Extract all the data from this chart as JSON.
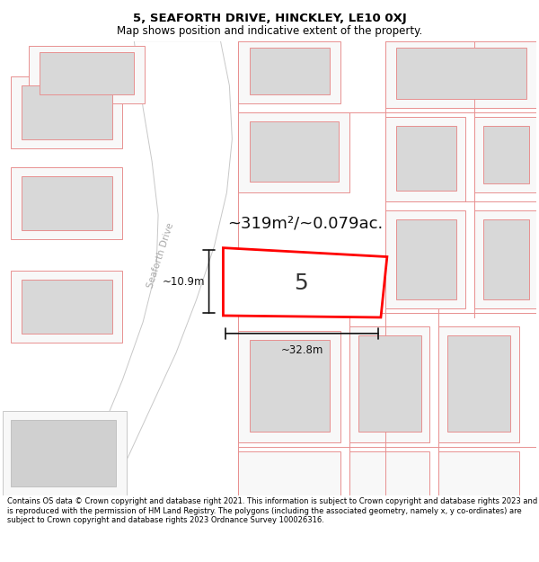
{
  "title": "5, SEAFORTH DRIVE, HINCKLEY, LE10 0XJ",
  "subtitle": "Map shows position and indicative extent of the property.",
  "footer": "Contains OS data © Crown copyright and database right 2021. This information is subject to Crown copyright and database rights 2023 and is reproduced with the permission of HM Land Registry. The polygons (including the associated geometry, namely x, y co-ordinates) are subject to Crown copyright and database rights 2023 Ordnance Survey 100026316.",
  "property_label": "5",
  "area_text": "~319m²/~0.079ac.",
  "width_label": "~32.8m",
  "height_label": "~10.9m",
  "road_label": "Seaforth Drive",
  "plot_color": "#ff0000",
  "plot_fill": "#ffffff",
  "neighbour_fill": "#d8d8d8",
  "neighbour_edge": "#e89090",
  "road_color": "#c8c8c8",
  "bg_color": "#f5f5f5",
  "title_fontsize": 9.5,
  "subtitle_fontsize": 8.5,
  "footer_fontsize": 6.0,
  "area_fontsize": 13,
  "label_fontsize": 18,
  "dim_fontsize": 8.5,
  "road_label_fontsize": 7.5
}
